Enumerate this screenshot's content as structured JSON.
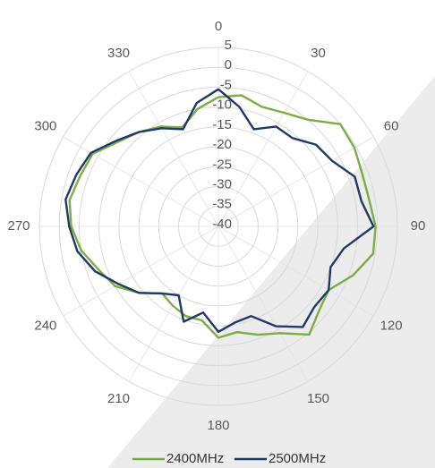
{
  "chart_data": {
    "type": "polar",
    "angle_step_deg": 10,
    "angle_labels": [
      "0",
      "30",
      "60",
      "90",
      "120",
      "150",
      "180",
      "210",
      "240",
      "270",
      "300",
      "330"
    ],
    "radial_range": [
      -40,
      5
    ],
    "radial_ticks": [
      "5",
      "0",
      "-5",
      "-10",
      "-15",
      "-20",
      "-25",
      "-30",
      "-35",
      "-40"
    ],
    "legend_position": "bottom",
    "series": [
      {
        "name": "2400MHz",
        "color": "#7aad45",
        "values": [
          -7.5,
          -6.5,
          -8,
          -7,
          -5,
          0,
          -0.5,
          -1.5,
          -1.5,
          -0.5,
          -0.5,
          -4,
          -8,
          -7,
          -4.5,
          -9,
          -11,
          -13,
          -12,
          -16,
          -16,
          -17,
          -18,
          -14,
          -10,
          -8,
          -5,
          -3,
          -2,
          -3,
          -3.5,
          -7,
          -9,
          -11,
          -13.5,
          -10
        ]
      },
      {
        "name": "2500MHz",
        "color": "#1f3a68",
        "values": [
          -5.5,
          -9.5,
          -14,
          -11,
          -11,
          -8,
          -7,
          -3.5,
          -3.5,
          -1,
          -8,
          -10,
          -8,
          -8.5,
          -7,
          -11,
          -16,
          -15.5,
          -13.5,
          -18,
          -14.5,
          -20,
          -18,
          -14,
          -11,
          -7,
          -4,
          -2.5,
          -1,
          -2,
          -3,
          -6.5,
          -9,
          -11.5,
          -14,
          -8.5
        ]
      }
    ]
  }
}
